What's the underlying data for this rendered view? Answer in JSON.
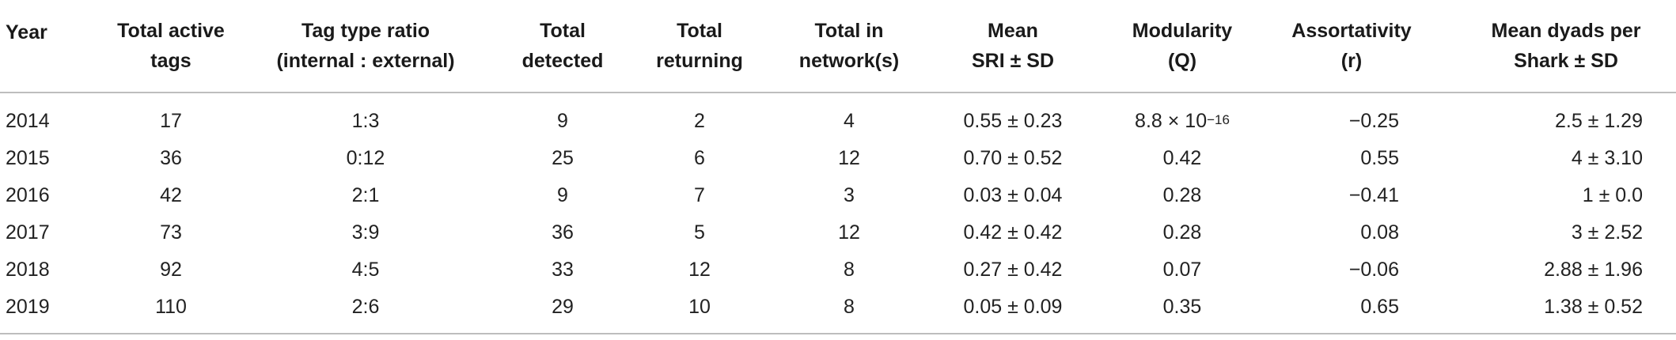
{
  "table": {
    "header": [
      [
        "Year"
      ],
      [
        "Total active",
        "tags"
      ],
      [
        "Tag type ratio",
        "(internal : external)"
      ],
      [
        "Total",
        "detected"
      ],
      [
        "Total",
        "returning"
      ],
      [
        "Total in",
        "network(s)"
      ],
      [
        "Mean",
        "SRI ± SD"
      ],
      [
        "Modularity",
        "(Q)"
      ],
      [
        "Assortativity",
        "(r)"
      ],
      [
        "Mean dyads per",
        "Shark ± SD"
      ]
    ],
    "rows": [
      [
        "2014",
        "17",
        "1:3",
        "9",
        "2",
        "4",
        "0.55 ± 0.23",
        {
          "base": "8.8 × 10",
          "sup": "−16"
        },
        "−0.25",
        "2.5 ± 1.29"
      ],
      [
        "2015",
        "36",
        "0:12",
        "25",
        "6",
        "12",
        "0.70 ± 0.52",
        "0.42",
        "0.55",
        "4 ± 3.10"
      ],
      [
        "2016",
        "42",
        "2:1",
        "9",
        "7",
        "3",
        "0.03 ± 0.04",
        "0.28",
        "−0.41",
        "1 ± 0.0"
      ],
      [
        "2017",
        "73",
        "3:9",
        "36",
        "5",
        "12",
        "0.42 ± 0.42",
        "0.28",
        "0.08",
        "3 ± 2.52"
      ],
      [
        "2018",
        "92",
        "4:5",
        "33",
        "12",
        "8",
        "0.27 ± 0.42",
        "0.07",
        "−0.06",
        "2.88 ± 1.96"
      ],
      [
        "2019",
        "110",
        "2:6",
        "29",
        "10",
        "8",
        "0.05 ± 0.09",
        "0.35",
        "0.65",
        "1.38 ± 0.52"
      ]
    ]
  }
}
